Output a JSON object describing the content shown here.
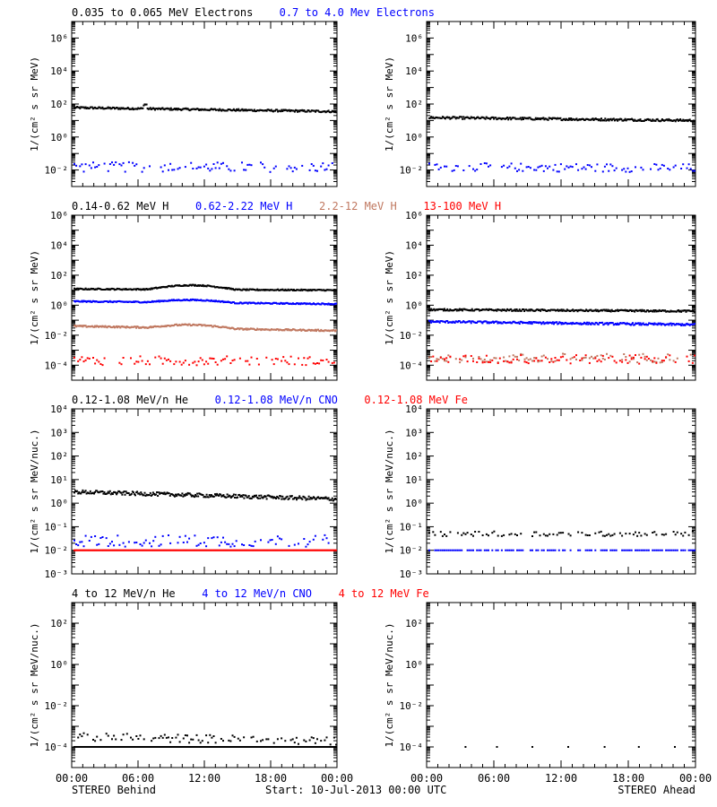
{
  "footer": {
    "left": "STEREO Behind",
    "center": "Start: 10-Jul-2013 00:00 UTC",
    "right": "STEREO Ahead"
  },
  "colors": {
    "black": "#000000",
    "blue": "#0000ff",
    "tan": "#c07860",
    "red": "#ff0000"
  },
  "x_ticks": [
    "00:00",
    "06:00",
    "12:00",
    "18:00",
    "00:00"
  ],
  "chart_data": [
    {
      "type": "scatter",
      "panel": "electrons-behind",
      "yscale": "log",
      "ylabel": "1/(cm² s sr MeV)",
      "ylim_exp": [
        -3,
        7
      ],
      "y_tick_exponents": [
        -2,
        0,
        2,
        4,
        6
      ],
      "legend": [
        {
          "label": "0.035 to 0.065 MeV Electrons",
          "color": "#000000"
        },
        {
          "label": "0.7 to 4.0 Mev Electrons",
          "color": "#0000ff"
        }
      ],
      "series": [
        {
          "color": "#000000",
          "start": 60,
          "end": 35,
          "jitter": 0.06,
          "spike": 1.8,
          "spike_at": 0.27
        },
        {
          "color": "#0000ff",
          "start": 0.015,
          "end": 0.015,
          "jitter": 0.3,
          "sparse": true
        }
      ]
    },
    {
      "type": "scatter",
      "panel": "electrons-ahead",
      "yscale": "log",
      "ylabel": "1/(cm² s sr MeV)",
      "ylim_exp": [
        -3,
        7
      ],
      "y_tick_exponents": [
        -2,
        0,
        2,
        4,
        6
      ],
      "series": [
        {
          "color": "#000000",
          "start": 15,
          "end": 10,
          "jitter": 0.07
        },
        {
          "color": "#0000ff",
          "start": 0.015,
          "end": 0.013,
          "jitter": 0.25,
          "sparse": true
        }
      ]
    },
    {
      "type": "scatter",
      "panel": "protons-behind",
      "yscale": "log",
      "ylabel": "1/(cm² s sr MeV)",
      "ylim_exp": [
        -5,
        6
      ],
      "y_tick_exponents": [
        -4,
        -2,
        0,
        2,
        4,
        6
      ],
      "legend": [
        {
          "label": "0.14-0.62 MeV H",
          "color": "#000000"
        },
        {
          "label": "0.62-2.22 MeV H",
          "color": "#0000ff"
        },
        {
          "label": "2.2-12 MeV H",
          "color": "#c07860"
        },
        {
          "label": "13-100 MeV H",
          "color": "#ff0000"
        }
      ],
      "series": [
        {
          "color": "#000000",
          "start": 12,
          "end": 10,
          "hump": 25,
          "jitter": 0.04
        },
        {
          "color": "#0000ff",
          "start": 1.8,
          "end": 1.2,
          "hump": 2.8,
          "jitter": 0.04
        },
        {
          "color": "#c07860",
          "start": 0.04,
          "end": 0.02,
          "hump": 0.07,
          "jitter": 0.05
        },
        {
          "color": "#ff0000",
          "start": 0.0002,
          "end": 0.0002,
          "jitter": 0.3,
          "sparse": true
        }
      ]
    },
    {
      "type": "scatter",
      "panel": "protons-ahead",
      "yscale": "log",
      "ylabel": "1/(cm² s sr MeV)",
      "ylim_exp": [
        -5,
        6
      ],
      "y_tick_exponents": [
        -4,
        -2,
        0,
        2,
        4,
        6
      ],
      "series": [
        {
          "color": "#000000",
          "start": 0.5,
          "end": 0.4,
          "jitter": 0.06
        },
        {
          "color": "#0000ff",
          "start": 0.08,
          "end": 0.05,
          "jitter": 0.07
        },
        {
          "color": "#c07860",
          "start": 0.0003,
          "end": 0.0003,
          "jitter": 0.3,
          "sparse": true
        },
        {
          "color": "#ff0000",
          "start": 0.00025,
          "end": 0.00025,
          "jitter": 0.3,
          "sparse": true
        }
      ]
    },
    {
      "type": "scatter",
      "panel": "heavy-ions-behind",
      "yscale": "log",
      "ylabel": "1/(cm² s sr MeV/nuc.)",
      "ylim_exp": [
        -3,
        4
      ],
      "y_tick_exponents": [
        -3,
        -2,
        -1,
        0,
        1,
        2,
        3,
        4
      ],
      "legend": [
        {
          "label": "0.12-1.08 MeV/n He",
          "color": "#000000"
        },
        {
          "label": "0.12-1.08 MeV/n CNO",
          "color": "#0000ff"
        },
        {
          "label": "0.12-1.08 MeV Fe",
          "color": "#ff0000"
        }
      ],
      "series": [
        {
          "color": "#000000",
          "start": 3.0,
          "end": 1.5,
          "jitter": 0.08
        },
        {
          "color": "#0000ff",
          "start": 0.025,
          "end": 0.025,
          "jitter": 0.25,
          "sparse": true
        },
        {
          "color": "#ff0000",
          "start": 0.01,
          "end": 0.01,
          "jitter": 0.0
        }
      ]
    },
    {
      "type": "scatter",
      "panel": "heavy-ions-ahead",
      "yscale": "log",
      "ylabel": "1/(cm² s sr MeV/nuc.)",
      "ylim_exp": [
        -3,
        4
      ],
      "y_tick_exponents": [
        -3,
        -2,
        -1,
        0,
        1,
        2,
        3,
        4
      ],
      "series": [
        {
          "color": "#000000",
          "start": 0.05,
          "end": 0.05,
          "jitter": 0.1,
          "sparse": true
        },
        {
          "color": "#0000ff",
          "start": 0.01,
          "end": 0.01,
          "jitter": 0.0,
          "sparse": true
        }
      ]
    },
    {
      "type": "scatter",
      "panel": "high-energy-ions-behind",
      "yscale": "log",
      "ylabel": "1/(cm² s sr MeV/nuc.)",
      "ylim_exp": [
        -5,
        3
      ],
      "y_tick_exponents": [
        -4,
        -2,
        0,
        2
      ],
      "legend": [
        {
          "label": "4 to 12 MeV/n He",
          "color": "#000000"
        },
        {
          "label": "4 to 12 MeV/n CNO",
          "color": "#0000ff"
        },
        {
          "label": "4 to 12 MeV Fe",
          "color": "#ff0000"
        }
      ],
      "series": [
        {
          "color": "#000000",
          "start": 0.0003,
          "end": 0.0002,
          "jitter": 0.2,
          "sparse": true
        },
        {
          "color": "#000000",
          "start": 0.0001,
          "end": 0.0001,
          "jitter": 0.0
        }
      ]
    },
    {
      "type": "scatter",
      "panel": "high-energy-ions-ahead",
      "yscale": "log",
      "ylabel": "1/(cm² s sr MeV/nuc.)",
      "ylim_exp": [
        -5,
        3
      ],
      "y_tick_exponents": [
        -4,
        -2,
        0,
        2
      ],
      "series": [
        {
          "color": "#000000",
          "start": 0.0001,
          "end": 0.0001,
          "jitter": 0.0,
          "very_sparse": true
        }
      ]
    }
  ]
}
